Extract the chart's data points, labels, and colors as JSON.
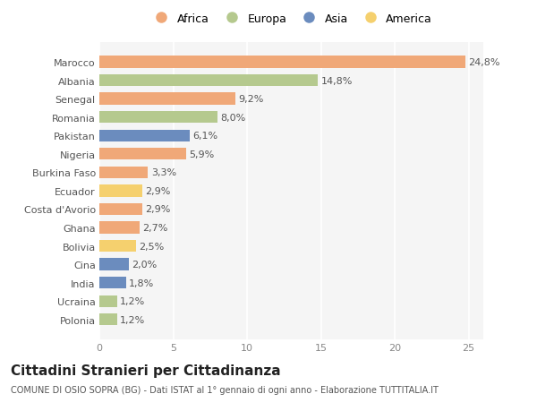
{
  "categories": [
    "Polonia",
    "Ucraina",
    "India",
    "Cina",
    "Bolivia",
    "Ghana",
    "Costa d'Avorio",
    "Ecuador",
    "Burkina Faso",
    "Nigeria",
    "Pakistan",
    "Romania",
    "Senegal",
    "Albania",
    "Marocco"
  ],
  "values": [
    1.2,
    1.2,
    1.8,
    2.0,
    2.5,
    2.7,
    2.9,
    2.9,
    3.3,
    5.9,
    6.1,
    8.0,
    9.2,
    14.8,
    24.8
  ],
  "labels": [
    "1,2%",
    "1,2%",
    "1,8%",
    "2,0%",
    "2,5%",
    "2,7%",
    "2,9%",
    "2,9%",
    "3,3%",
    "5,9%",
    "6,1%",
    "8,0%",
    "9,2%",
    "14,8%",
    "24,8%"
  ],
  "continents": [
    "Europa",
    "Europa",
    "Asia",
    "Asia",
    "America",
    "Africa",
    "Africa",
    "America",
    "Africa",
    "Africa",
    "Asia",
    "Europa",
    "Africa",
    "Europa",
    "Africa"
  ],
  "continent_colors": {
    "Africa": "#F0A878",
    "Europa": "#B5C98E",
    "Asia": "#6B8CBE",
    "America": "#F5D06E"
  },
  "legend_order": [
    "Africa",
    "Europa",
    "Asia",
    "America"
  ],
  "legend_colors": {
    "Africa": "#F0A878",
    "Europa": "#B5C98E",
    "Asia": "#6B8CBE",
    "America": "#F5D06E"
  },
  "title": "Cittadini Stranieri per Cittadinanza",
  "subtitle": "COMUNE DI OSIO SOPRA (BG) - Dati ISTAT al 1° gennaio di ogni anno - Elaborazione TUTTITALIA.IT",
  "xlim": [
    0,
    26
  ],
  "xticks": [
    0,
    5,
    10,
    15,
    20,
    25
  ],
  "background_color": "#ffffff",
  "plot_background": "#f5f5f5",
  "bar_height": 0.65,
  "label_fontsize": 8.0,
  "tick_fontsize": 8.0,
  "title_fontsize": 11,
  "subtitle_fontsize": 7.0,
  "legend_fontsize": 9.0
}
